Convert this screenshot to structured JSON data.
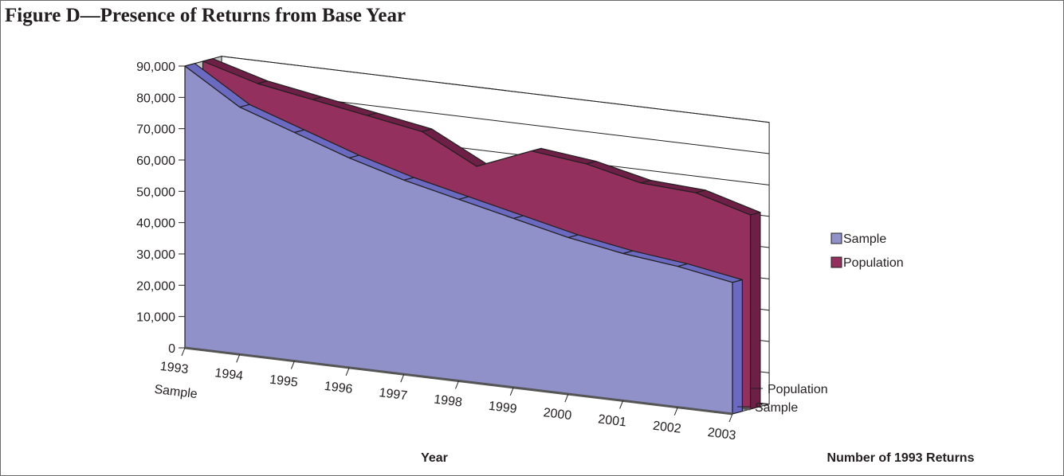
{
  "title": "Figure D—Presence of Returns from Base Year",
  "colors": {
    "sample_front": "#9191c9",
    "sample_top": "#6a6ac0",
    "population_front": "#93305e",
    "population_top": "#6e1f46",
    "wall": "#c8c8c8",
    "grid": "#231f20"
  },
  "chart_data": {
    "type": "area",
    "subtype": "3d-area",
    "title": "Figure D—Presence of Returns from Base Year",
    "xlabel": "Year",
    "zlabel": "Number of 1993 Returns",
    "categories": [
      "1993",
      "1994",
      "1995",
      "1996",
      "1997",
      "1998",
      "1999",
      "2000",
      "2001",
      "2002",
      "2003"
    ],
    "first_category_sublabel": "Sample",
    "depth_labels": [
      "Population",
      "Sample"
    ],
    "ylim": [
      0,
      90000
    ],
    "yticks": [
      "0",
      "10,000",
      "20,000",
      "30,000",
      "40,000",
      "50,000",
      "60,000",
      "70,000",
      "80,000",
      "90,000"
    ],
    "grid": true,
    "legend_position": "right",
    "series": [
      {
        "name": "Sample",
        "values": [
          90000,
          79000,
          73000,
          67000,
          62000,
          58000,
          54000,
          50000,
          47000,
          45000,
          42000
        ]
      },
      {
        "name": "Population",
        "values": [
          90000,
          85000,
          82000,
          79000,
          76000,
          67000,
          74000,
          72000,
          68000,
          67000,
          62000
        ]
      }
    ]
  }
}
